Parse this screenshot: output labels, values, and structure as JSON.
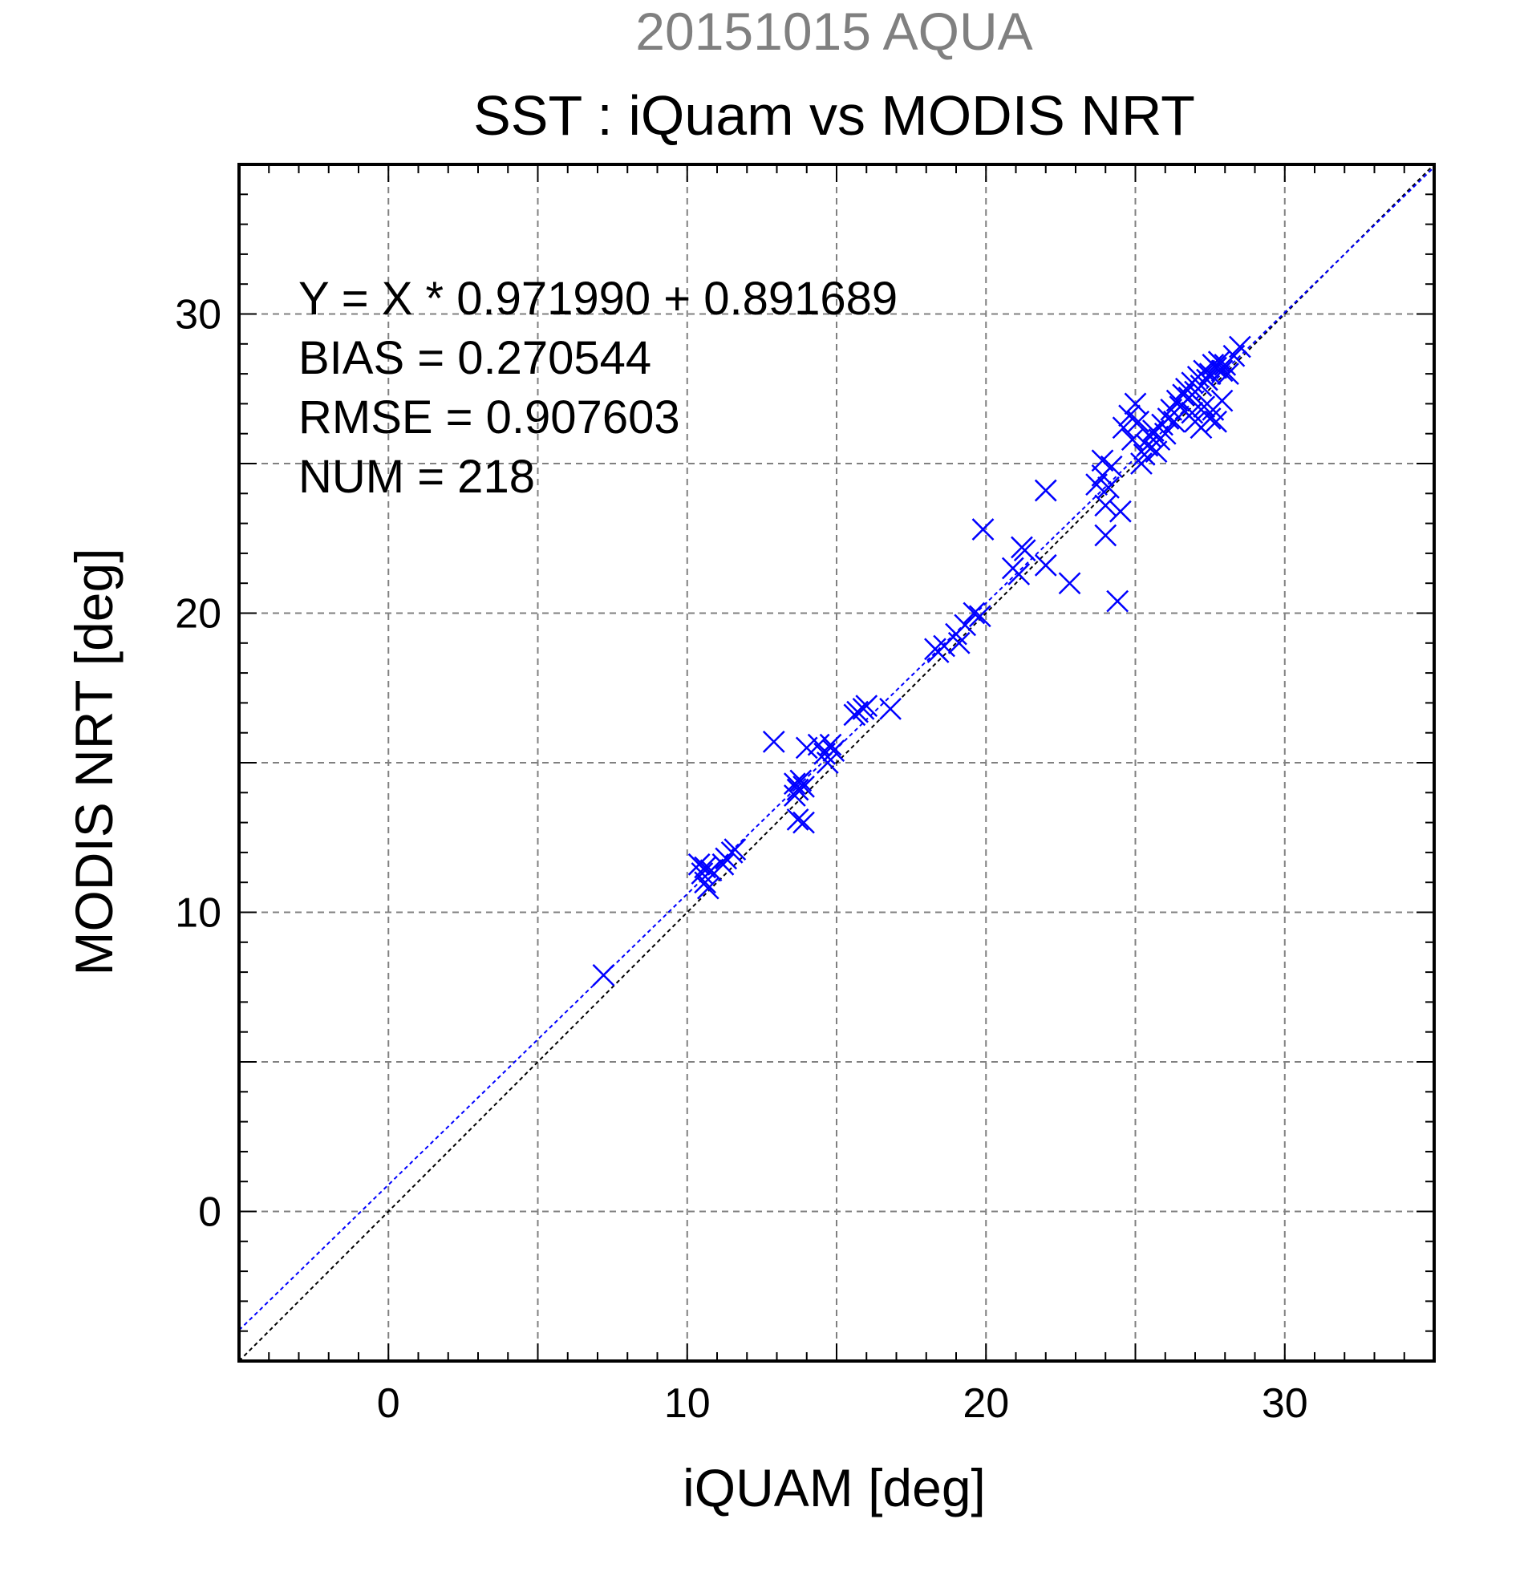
{
  "chart_data": {
    "type": "scatter",
    "title": "20151015 AQUA",
    "subtitle": "SST : iQuam vs MODIS NRT",
    "xlabel": "iQUAM [deg]",
    "ylabel": "MODIS NRT [deg]",
    "xlim": [
      -5,
      35
    ],
    "ylim": [
      -5,
      35
    ],
    "xticks": [
      0,
      10,
      20,
      30
    ],
    "yticks": [
      0,
      10,
      20,
      30
    ],
    "grid": true,
    "stats": {
      "equation": "Y = X * 0.971990 + 0.891689",
      "bias": "BIAS = 0.270544",
      "rmse": "RMSE = 0.907603",
      "num": "NUM = 218"
    },
    "fit": {
      "slope": 0.97199,
      "intercept": 0.891689
    },
    "colors": {
      "points": "#0000ff",
      "fit_line": "#0000ff",
      "identity_line": "#000000",
      "title": "#808080",
      "grid": "#808080"
    },
    "points": [
      [
        7.2,
        7.9
      ],
      [
        10.4,
        11.6
      ],
      [
        10.5,
        11.3
      ],
      [
        10.6,
        11.5
      ],
      [
        10.6,
        11.0
      ],
      [
        10.7,
        10.8
      ],
      [
        10.8,
        11.4
      ],
      [
        11.2,
        11.6
      ],
      [
        11.3,
        11.8
      ],
      [
        11.5,
        12.0
      ],
      [
        11.6,
        12.1
      ],
      [
        12.9,
        15.7
      ],
      [
        13.6,
        14.3
      ],
      [
        13.7,
        14.1
      ],
      [
        13.6,
        13.9
      ],
      [
        13.8,
        14.4
      ],
      [
        13.9,
        14.2
      ],
      [
        13.7,
        13.1
      ],
      [
        13.9,
        13.0
      ],
      [
        14.0,
        15.5
      ],
      [
        14.4,
        15.6
      ],
      [
        14.6,
        15.3
      ],
      [
        14.7,
        15.0
      ],
      [
        14.8,
        15.6
      ],
      [
        14.9,
        15.4
      ],
      [
        15.6,
        16.6
      ],
      [
        15.7,
        16.7
      ],
      [
        15.9,
        16.8
      ],
      [
        16.0,
        16.9
      ],
      [
        16.8,
        16.8
      ],
      [
        18.3,
        18.8
      ],
      [
        18.4,
        18.7
      ],
      [
        18.6,
        18.9
      ],
      [
        19.0,
        19.3
      ],
      [
        19.1,
        19.0
      ],
      [
        19.3,
        19.6
      ],
      [
        19.6,
        20.0
      ],
      [
        19.8,
        19.9
      ],
      [
        19.9,
        22.8
      ],
      [
        20.9,
        21.5
      ],
      [
        21.1,
        21.3
      ],
      [
        21.2,
        22.2
      ],
      [
        21.3,
        22.1
      ],
      [
        22.0,
        21.6
      ],
      [
        22.0,
        24.1
      ],
      [
        22.8,
        21.0
      ],
      [
        23.7,
        24.3
      ],
      [
        23.9,
        24.6
      ],
      [
        23.9,
        25.1
      ],
      [
        24.0,
        23.6
      ],
      [
        24.0,
        22.6
      ],
      [
        24.1,
        24.2
      ],
      [
        24.2,
        24.9
      ],
      [
        24.4,
        20.4
      ],
      [
        24.5,
        23.4
      ],
      [
        24.6,
        26.2
      ],
      [
        24.8,
        26.6
      ],
      [
        24.9,
        25.8
      ],
      [
        25.0,
        27.0
      ],
      [
        25.1,
        26.4
      ],
      [
        25.2,
        25.0
      ],
      [
        25.3,
        25.3
      ],
      [
        25.4,
        25.6
      ],
      [
        25.5,
        25.9
      ],
      [
        25.6,
        26.1
      ],
      [
        25.7,
        25.4
      ],
      [
        25.8,
        25.8
      ],
      [
        25.9,
        26.3
      ],
      [
        26.0,
        26.0
      ],
      [
        26.1,
        26.5
      ],
      [
        26.2,
        26.8
      ],
      [
        26.3,
        26.4
      ],
      [
        26.4,
        27.1
      ],
      [
        26.5,
        26.9
      ],
      [
        26.6,
        27.3
      ],
      [
        26.7,
        27.5
      ],
      [
        26.8,
        27.2
      ],
      [
        26.9,
        27.7
      ],
      [
        27.0,
        27.4
      ],
      [
        27.1,
        27.9
      ],
      [
        27.2,
        27.6
      ],
      [
        27.3,
        28.1
      ],
      [
        27.4,
        27.8
      ],
      [
        27.5,
        28.0
      ],
      [
        27.6,
        28.3
      ],
      [
        27.7,
        28.2
      ],
      [
        27.8,
        28.4
      ],
      [
        27.9,
        28.1
      ],
      [
        28.0,
        28.3
      ],
      [
        28.1,
        28.0
      ],
      [
        28.3,
        28.6
      ],
      [
        28.5,
        28.9
      ],
      [
        27.0,
        26.4
      ],
      [
        27.2,
        26.2
      ],
      [
        27.5,
        26.5
      ],
      [
        27.7,
        26.4
      ],
      [
        26.9,
        26.7
      ],
      [
        27.3,
        26.9
      ],
      [
        27.6,
        26.8
      ],
      [
        27.9,
        27.1
      ]
    ]
  }
}
